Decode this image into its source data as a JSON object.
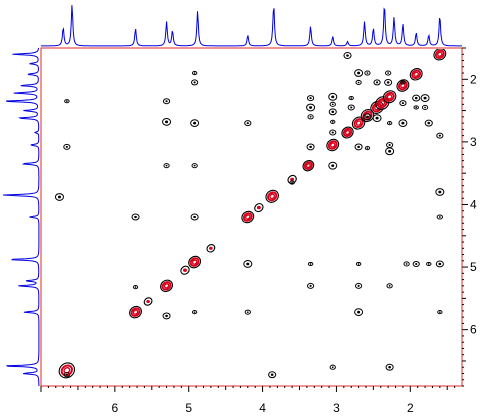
{
  "chart_data": {
    "type": "scatter",
    "subtype": "2D NMR homonuclear correlation contour plot (COSY-type) with 1D projections",
    "xlabel": "",
    "ylabel": "",
    "xlim": [
      7.0,
      1.3
    ],
    "ylim": [
      1.5,
      6.9
    ],
    "x_ticks": [
      6,
      5,
      4,
      3,
      2
    ],
    "y_ticks": [
      2,
      3,
      4,
      5,
      6
    ],
    "x_reversed": true,
    "y_inverted": true,
    "grid": false,
    "colors": {
      "frame": "#e0282a",
      "diagonal": "#d9001b",
      "contour": "#000000",
      "projection": "#0000e0"
    },
    "projection_peaks": [
      {
        "shift": 6.7,
        "height": 0.42
      },
      {
        "shift": 6.58,
        "height": 0.95
      },
      {
        "shift": 5.72,
        "height": 0.4
      },
      {
        "shift": 5.3,
        "height": 0.55
      },
      {
        "shift": 5.22,
        "height": 0.35
      },
      {
        "shift": 4.88,
        "height": 0.8
      },
      {
        "shift": 4.2,
        "height": 0.25
      },
      {
        "shift": 3.85,
        "height": 0.95
      },
      {
        "shift": 3.35,
        "height": 0.45
      },
      {
        "shift": 3.05,
        "height": 0.22
      },
      {
        "shift": 2.85,
        "height": 0.1
      },
      {
        "shift": 2.62,
        "height": 0.55
      },
      {
        "shift": 2.5,
        "height": 0.4
      },
      {
        "shift": 2.35,
        "height": 0.95
      },
      {
        "shift": 2.22,
        "height": 0.65
      },
      {
        "shift": 2.1,
        "height": 0.5
      },
      {
        "shift": 1.92,
        "height": 0.3
      },
      {
        "shift": 1.75,
        "height": 0.25
      },
      {
        "shift": 1.6,
        "height": 0.7
      }
    ],
    "diagonal_peaks": [
      {
        "shift": 6.65,
        "size": 1.6
      },
      {
        "shift": 5.72,
        "size": 1.0
      },
      {
        "shift": 5.55,
        "size": 0.3
      },
      {
        "shift": 5.3,
        "size": 1.0
      },
      {
        "shift": 5.05,
        "size": 0.4
      },
      {
        "shift": 4.92,
        "size": 1.0
      },
      {
        "shift": 4.7,
        "size": 0.3
      },
      {
        "shift": 4.2,
        "size": 1.0
      },
      {
        "shift": 4.05,
        "size": 0.4
      },
      {
        "shift": 3.87,
        "size": 1.1
      },
      {
        "shift": 3.6,
        "size": 0.4
      },
      {
        "shift": 3.38,
        "size": 0.8
      },
      {
        "shift": 3.05,
        "size": 1.0
      },
      {
        "shift": 2.85,
        "size": 0.9
      },
      {
        "shift": 2.7,
        "size": 1.1
      },
      {
        "shift": 2.58,
        "size": 1.1
      },
      {
        "shift": 2.45,
        "size": 1.1
      },
      {
        "shift": 2.38,
        "size": 1.2
      },
      {
        "shift": 2.28,
        "size": 1.1
      },
      {
        "shift": 2.1,
        "size": 1.0
      },
      {
        "shift": 1.92,
        "size": 1.0
      },
      {
        "shift": 1.6,
        "size": 1.0
      }
    ],
    "cross_peaks": [
      {
        "x": 6.65,
        "y": 2.35
      },
      {
        "x": 6.65,
        "y": 3.08
      },
      {
        "x": 6.75,
        "y": 3.88
      },
      {
        "x": 6.65,
        "y": 6.72
      },
      {
        "x": 5.72,
        "y": 4.2
      },
      {
        "x": 5.72,
        "y": 5.32
      },
      {
        "x": 5.3,
        "y": 2.35
      },
      {
        "x": 5.3,
        "y": 2.68
      },
      {
        "x": 5.3,
        "y": 3.38
      },
      {
        "x": 5.3,
        "y": 5.78
      },
      {
        "x": 4.92,
        "y": 1.9
      },
      {
        "x": 4.92,
        "y": 2.05
      },
      {
        "x": 4.92,
        "y": 2.7
      },
      {
        "x": 4.92,
        "y": 3.38
      },
      {
        "x": 4.92,
        "y": 4.2
      },
      {
        "x": 4.92,
        "y": 5.72
      },
      {
        "x": 4.2,
        "y": 2.7
      },
      {
        "x": 4.2,
        "y": 4.95
      },
      {
        "x": 4.2,
        "y": 5.72
      },
      {
        "x": 3.87,
        "y": 6.72
      },
      {
        "x": 3.6,
        "y": 3.65
      },
      {
        "x": 3.35,
        "y": 2.3
      },
      {
        "x": 3.35,
        "y": 2.45
      },
      {
        "x": 3.35,
        "y": 2.6
      },
      {
        "x": 3.35,
        "y": 3.08
      },
      {
        "x": 3.35,
        "y": 4.95
      },
      {
        "x": 3.35,
        "y": 5.3
      },
      {
        "x": 3.05,
        "y": 2.28
      },
      {
        "x": 3.05,
        "y": 2.4
      },
      {
        "x": 3.05,
        "y": 2.52
      },
      {
        "x": 3.05,
        "y": 2.68
      },
      {
        "x": 3.05,
        "y": 2.85
      },
      {
        "x": 3.05,
        "y": 3.38
      },
      {
        "x": 3.05,
        "y": 6.6
      },
      {
        "x": 2.85,
        "y": 1.62
      },
      {
        "x": 2.8,
        "y": 2.3
      },
      {
        "x": 2.8,
        "y": 2.45
      },
      {
        "x": 2.7,
        "y": 1.9
      },
      {
        "x": 2.7,
        "y": 2.05
      },
      {
        "x": 2.7,
        "y": 3.08
      },
      {
        "x": 2.7,
        "y": 4.95
      },
      {
        "x": 2.7,
        "y": 5.3
      },
      {
        "x": 2.7,
        "y": 5.72
      },
      {
        "x": 2.58,
        "y": 1.9
      },
      {
        "x": 2.58,
        "y": 2.6
      },
      {
        "x": 2.58,
        "y": 3.1
      },
      {
        "x": 2.45,
        "y": 2.05
      },
      {
        "x": 2.45,
        "y": 2.62
      },
      {
        "x": 2.3,
        "y": 1.9
      },
      {
        "x": 2.3,
        "y": 2.05
      },
      {
        "x": 2.28,
        "y": 2.7
      },
      {
        "x": 2.28,
        "y": 3.05
      },
      {
        "x": 2.28,
        "y": 3.15
      },
      {
        "x": 2.28,
        "y": 5.3
      },
      {
        "x": 2.28,
        "y": 6.6
      },
      {
        "x": 2.1,
        "y": 2.05
      },
      {
        "x": 2.1,
        "y": 2.38
      },
      {
        "x": 2.1,
        "y": 2.7
      },
      {
        "x": 2.05,
        "y": 4.95
      },
      {
        "x": 1.92,
        "y": 2.3
      },
      {
        "x": 1.92,
        "y": 2.45
      },
      {
        "x": 1.92,
        "y": 4.95
      },
      {
        "x": 1.8,
        "y": 2.3
      },
      {
        "x": 1.8,
        "y": 2.45
      },
      {
        "x": 1.75,
        "y": 2.7
      },
      {
        "x": 1.75,
        "y": 4.95
      },
      {
        "x": 1.6,
        "y": 2.9
      },
      {
        "x": 1.6,
        "y": 3.8
      },
      {
        "x": 1.6,
        "y": 4.2
      },
      {
        "x": 1.6,
        "y": 4.95
      },
      {
        "x": 1.6,
        "y": 5.72
      }
    ]
  }
}
